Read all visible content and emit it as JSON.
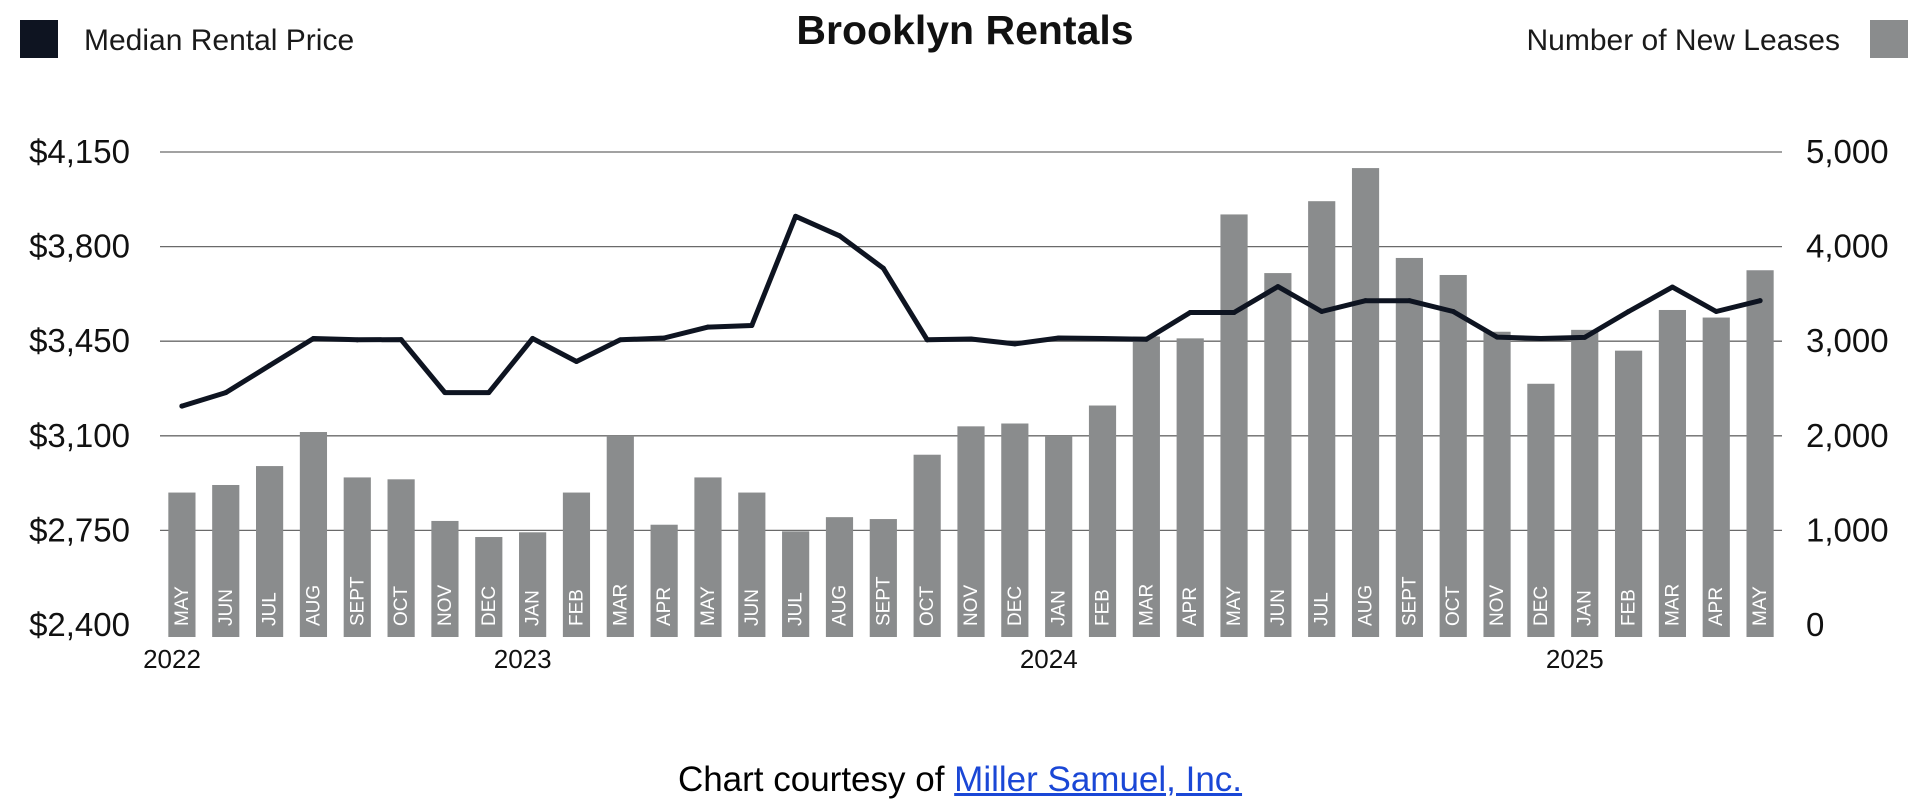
{
  "footer": {
    "prefix": "Chart courtesy of ",
    "link_text": "Miller Samuel, Inc."
  },
  "colors": {
    "line": "#0e1421",
    "bar": "#8a8c8d",
    "grid": "#6a6a6a",
    "bar_label": "#ffffff",
    "link": "#1a47d6"
  },
  "chart_data": {
    "type": "bar",
    "title": "Brooklyn Rentals",
    "legend": {
      "left_series": "Median Rental Price",
      "right_series": "Number of New Leases"
    },
    "categories": [
      "MAY",
      "JUN",
      "JUL",
      "AUG",
      "SEPT",
      "OCT",
      "NOV",
      "DEC",
      "JAN",
      "FEB",
      "MAR",
      "APR",
      "MAY",
      "JUN",
      "JUL",
      "AUG",
      "SEPT",
      "OCT",
      "NOV",
      "DEC",
      "JAN",
      "FEB",
      "MAR",
      "APR",
      "MAY",
      "JUN",
      "JUL",
      "AUG",
      "SEPT",
      "OCT",
      "NOV",
      "DEC",
      "JAN",
      "FEB",
      "MAR",
      "APR",
      "MAY"
    ],
    "year_labels": [
      {
        "label": "2022",
        "index": 0
      },
      {
        "label": "2023",
        "index": 8
      },
      {
        "label": "2024",
        "index": 20
      },
      {
        "label": "2025",
        "index": 32
      }
    ],
    "y_left": {
      "ticks": [
        "$2,400",
        "$2,750",
        "$3,100",
        "$3,450",
        "$3,800",
        "$4,150"
      ],
      "ylim": [
        2400,
        4150
      ]
    },
    "y_right": {
      "ticks": [
        "0",
        "1,000",
        "2,000",
        "3,000",
        "4,000",
        "5,000"
      ],
      "ylim": [
        0,
        5000
      ]
    },
    "series": [
      {
        "name": "Number of New Leases",
        "type": "bar",
        "axis": "right",
        "values": [
          1400,
          1480,
          1680,
          2040,
          1560,
          1540,
          1100,
          930,
          980,
          1400,
          2000,
          1060,
          1560,
          1400,
          990,
          1140,
          1120,
          1800,
          2100,
          2130,
          2000,
          2320,
          3050,
          3030,
          4340,
          3720,
          4480,
          4830,
          3880,
          3700,
          3100,
          2550,
          3120,
          2900,
          3330,
          3250,
          3750
        ]
      },
      {
        "name": "Median Rental Price",
        "type": "line",
        "axis": "left",
        "values": [
          3210,
          3260,
          3360,
          3460,
          3455,
          3456,
          3260,
          3260,
          3460,
          3375,
          3455,
          3462,
          3502,
          3508,
          3912,
          3840,
          3720,
          3455,
          3458,
          3440,
          3462,
          3460,
          3457,
          3556,
          3556,
          3652,
          3560,
          3600,
          3600,
          3560,
          3465,
          3460,
          3464,
          3560,
          3650,
          3560,
          3600
        ]
      }
    ]
  }
}
